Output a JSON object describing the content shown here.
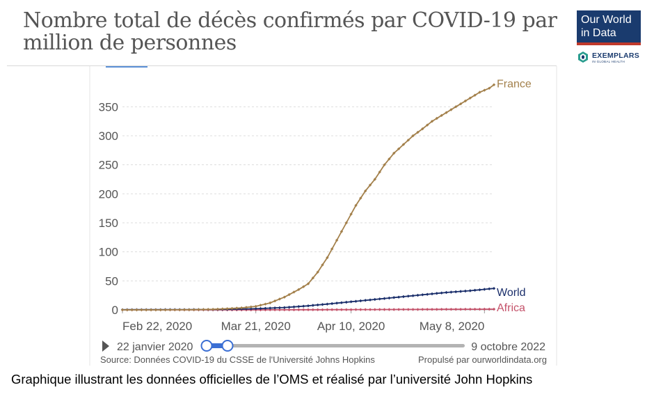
{
  "header": {
    "title": "Nombre total de décès confirmés par COVID-19 par million de personnes",
    "logo_line1": "Our World",
    "logo_line2": "in Data",
    "exemplars": "EXEMPLARS",
    "exemplars_sub": "IN GLOBAL HEALTH"
  },
  "timeline": {
    "start_label": "22 janvier 2020",
    "end_label": "9 octobre 2022"
  },
  "footer": {
    "source": "Source: Données COVID-19 du CSSE de l'Université Johns Hopkins",
    "powered": "Propulsé par ourworldindata.org"
  },
  "caption": "Graphique illustrant les données officielles de l’OMS et réalisé par l’université John Hopkins",
  "colors": {
    "france": "#a3804b",
    "world": "#1b2f6b",
    "africa": "#c4526a"
  },
  "chart_data": {
    "type": "line",
    "title": "Nombre total de décès confirmés par COVID-19 par million de personnes",
    "xlabel": "",
    "ylabel": "",
    "x_start": "2020-02-22",
    "x_end": "2020-05-10",
    "x_ticks": [
      {
        "date": "2020-02-22",
        "label": "Feb 22, 2020"
      },
      {
        "date": "2020-03-21",
        "label": "Mar 21, 2020"
      },
      {
        "date": "2020-04-10",
        "label": "Apr 10, 2020"
      },
      {
        "date": "2020-05-08",
        "label": "May 8, 2020"
      }
    ],
    "ylim": [
      0,
      390
    ],
    "y_ticks": [
      0,
      50,
      100,
      150,
      200,
      250,
      300,
      350
    ],
    "grid": true,
    "legend": "right-end labels",
    "series": [
      {
        "name": "France",
        "color": "#a3804b",
        "points": [
          [
            "2020-02-22",
            0
          ],
          [
            "2020-03-01",
            0
          ],
          [
            "2020-03-08",
            0.3
          ],
          [
            "2020-03-12",
            1
          ],
          [
            "2020-03-15",
            2
          ],
          [
            "2020-03-18",
            3.5
          ],
          [
            "2020-03-21",
            6
          ],
          [
            "2020-03-24",
            12
          ],
          [
            "2020-03-27",
            22
          ],
          [
            "2020-03-30",
            35
          ],
          [
            "2020-04-01",
            45
          ],
          [
            "2020-04-03",
            65
          ],
          [
            "2020-04-05",
            90
          ],
          [
            "2020-04-07",
            120
          ],
          [
            "2020-04-09",
            150
          ],
          [
            "2020-04-11",
            180
          ],
          [
            "2020-04-13",
            205
          ],
          [
            "2020-04-15",
            225
          ],
          [
            "2020-04-17",
            250
          ],
          [
            "2020-04-19",
            270
          ],
          [
            "2020-04-21",
            285
          ],
          [
            "2020-04-23",
            300
          ],
          [
            "2020-04-25",
            312
          ],
          [
            "2020-04-27",
            325
          ],
          [
            "2020-04-29",
            335
          ],
          [
            "2020-05-01",
            345
          ],
          [
            "2020-05-03",
            355
          ],
          [
            "2020-05-05",
            365
          ],
          [
            "2020-05-07",
            375
          ],
          [
            "2020-05-09",
            382
          ],
          [
            "2020-05-10",
            388
          ]
        ]
      },
      {
        "name": "World",
        "color": "#1b2f6b",
        "points": [
          [
            "2020-02-22",
            0.3
          ],
          [
            "2020-03-01",
            0.4
          ],
          [
            "2020-03-10",
            0.6
          ],
          [
            "2020-03-15",
            1
          ],
          [
            "2020-03-21",
            2
          ],
          [
            "2020-03-27",
            4
          ],
          [
            "2020-04-01",
            7
          ],
          [
            "2020-04-05",
            10
          ],
          [
            "2020-04-10",
            14
          ],
          [
            "2020-04-15",
            18
          ],
          [
            "2020-04-20",
            22
          ],
          [
            "2020-04-25",
            26
          ],
          [
            "2020-04-30",
            30
          ],
          [
            "2020-05-05",
            33
          ],
          [
            "2020-05-10",
            37
          ]
        ]
      },
      {
        "name": "Africa",
        "color": "#c4526a",
        "points": [
          [
            "2020-02-22",
            0
          ],
          [
            "2020-03-21",
            0.02
          ],
          [
            "2020-04-10",
            0.4
          ],
          [
            "2020-04-25",
            0.8
          ],
          [
            "2020-05-10",
            1.2
          ]
        ]
      }
    ]
  }
}
